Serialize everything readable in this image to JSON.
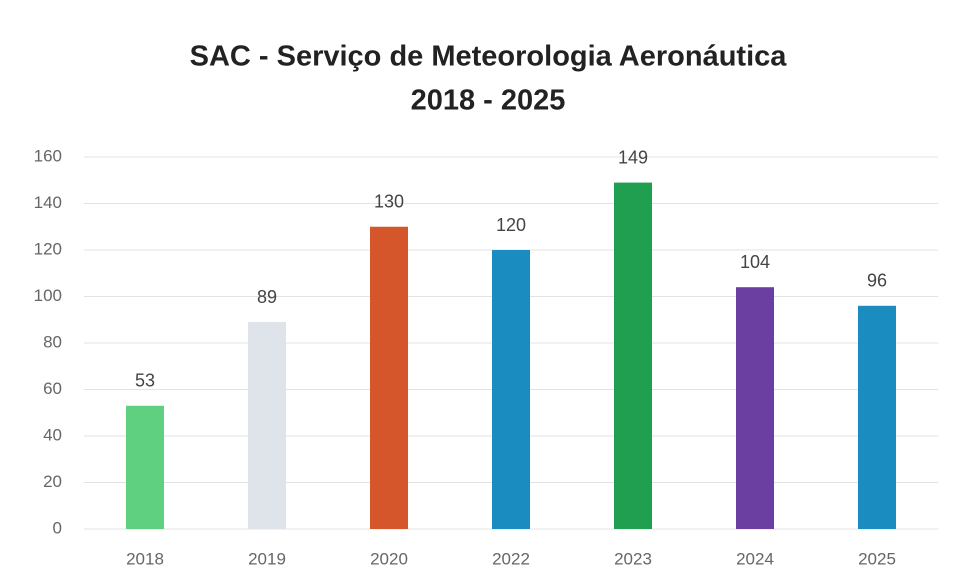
{
  "chart_data": {
    "type": "bar",
    "title": "SAC - Serviço de Meteorologia Aeronáutica",
    "subtitle": "2018 - 2025",
    "categories": [
      "2018",
      "2019",
      "2020",
      "2022",
      "2023",
      "2024",
      "2025"
    ],
    "values": [
      53,
      89,
      130,
      120,
      149,
      104,
      96
    ],
    "colors": [
      "#5fd07f",
      "#dfe3ea",
      "#d5562b",
      "#1b8cc0",
      "#1f9f4f",
      "#6b3fa1",
      "#1b8cc0"
    ],
    "ylim": [
      0,
      160
    ],
    "yticks": [
      0,
      20,
      40,
      60,
      80,
      100,
      120,
      140,
      160
    ],
    "grid": true
  }
}
